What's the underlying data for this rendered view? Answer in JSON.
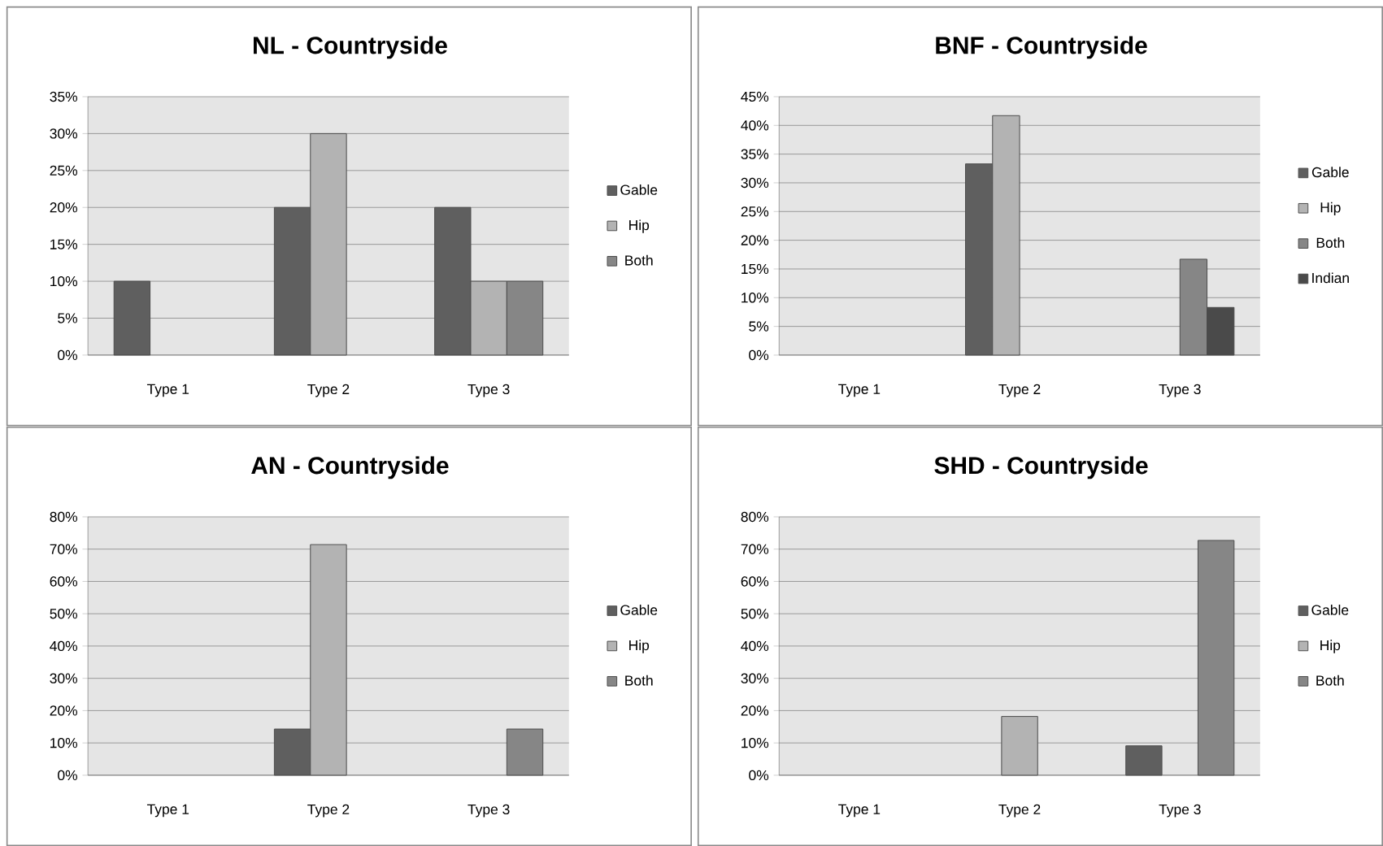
{
  "chart_data": [
    {
      "type": "bar",
      "title": "NL - Countryside",
      "categories": [
        "Type 1",
        "Type 2",
        "Type 3"
      ],
      "series": [
        {
          "name": "Gable",
          "color": "#5f5f5f",
          "values": [
            10,
            20,
            20
          ]
        },
        {
          "name": "Hip",
          "color": "#b3b3b3",
          "values": [
            null,
            30,
            10
          ]
        },
        {
          "name": "Both",
          "color": "#868686",
          "values": [
            null,
            null,
            10
          ]
        }
      ],
      "ylim": [
        0,
        35
      ],
      "yticks": [
        {
          "value": 0,
          "label": "0%"
        },
        {
          "value": 5,
          "label": "5%"
        },
        {
          "value": 10,
          "label": "10%"
        },
        {
          "value": 15,
          "label": "15%"
        },
        {
          "value": 20,
          "label": "20%"
        },
        {
          "value": 25,
          "label": "25%"
        },
        {
          "value": 30,
          "label": "30%"
        },
        {
          "value": 35,
          "label": "35%"
        }
      ],
      "grid": "y",
      "legend": "right"
    },
    {
      "type": "bar",
      "title": "BNF - Countryside",
      "categories": [
        "Type 1",
        "Type 2",
        "Type 3"
      ],
      "series": [
        {
          "name": "Gable",
          "color": "#5f5f5f",
          "values": [
            null,
            33.3,
            null
          ]
        },
        {
          "name": "Hip",
          "color": "#b3b3b3",
          "values": [
            null,
            41.7,
            null
          ]
        },
        {
          "name": "Both",
          "color": "#868686",
          "values": [
            null,
            null,
            16.7
          ]
        },
        {
          "name": "Indian",
          "color": "#4a4a4a",
          "values": [
            null,
            null,
            8.3
          ]
        }
      ],
      "ylim": [
        0,
        45
      ],
      "yticks": [
        {
          "value": 0,
          "label": "0%"
        },
        {
          "value": 5,
          "label": "5%"
        },
        {
          "value": 10,
          "label": "10%"
        },
        {
          "value": 15,
          "label": "15%"
        },
        {
          "value": 20,
          "label": "20%"
        },
        {
          "value": 25,
          "label": "25%"
        },
        {
          "value": 30,
          "label": "30%"
        },
        {
          "value": 35,
          "label": "35%"
        },
        {
          "value": 40,
          "label": "40%"
        },
        {
          "value": 45,
          "label": "45%"
        }
      ],
      "grid": "y",
      "legend": "right"
    },
    {
      "type": "bar",
      "title": "AN - Countryside",
      "categories": [
        "Type 1",
        "Type 2",
        "Type 3"
      ],
      "series": [
        {
          "name": "Gable",
          "color": "#5f5f5f",
          "values": [
            null,
            14.3,
            null
          ]
        },
        {
          "name": "Hip",
          "color": "#b3b3b3",
          "values": [
            null,
            71.4,
            null
          ]
        },
        {
          "name": "Both",
          "color": "#868686",
          "values": [
            null,
            null,
            14.3
          ]
        }
      ],
      "ylim": [
        0,
        80
      ],
      "yticks": [
        {
          "value": 0,
          "label": "0%"
        },
        {
          "value": 10,
          "label": "10%"
        },
        {
          "value": 20,
          "label": "20%"
        },
        {
          "value": 30,
          "label": "30%"
        },
        {
          "value": 40,
          "label": "40%"
        },
        {
          "value": 50,
          "label": "50%"
        },
        {
          "value": 60,
          "label": "60%"
        },
        {
          "value": 70,
          "label": "70%"
        },
        {
          "value": 80,
          "label": "80%"
        }
      ],
      "grid": "y",
      "legend": "right"
    },
    {
      "type": "bar",
      "title": "SHD - Countryside",
      "categories": [
        "Type 1",
        "Type 2",
        "Type 3"
      ],
      "series": [
        {
          "name": "Gable",
          "color": "#5f5f5f",
          "values": [
            null,
            null,
            9.1
          ]
        },
        {
          "name": "Hip",
          "color": "#b3b3b3",
          "values": [
            null,
            18.2,
            null
          ]
        },
        {
          "name": "Both",
          "color": "#868686",
          "values": [
            null,
            null,
            72.7
          ]
        }
      ],
      "ylim": [
        0,
        80
      ],
      "yticks": [
        {
          "value": 0,
          "label": "0%"
        },
        {
          "value": 10,
          "label": "10%"
        },
        {
          "value": 20,
          "label": "20%"
        },
        {
          "value": 30,
          "label": "30%"
        },
        {
          "value": 40,
          "label": "40%"
        },
        {
          "value": 50,
          "label": "50%"
        },
        {
          "value": 60,
          "label": "60%"
        },
        {
          "value": 70,
          "label": "70%"
        },
        {
          "value": 80,
          "label": "80%"
        }
      ],
      "grid": "y",
      "legend": "right"
    }
  ]
}
